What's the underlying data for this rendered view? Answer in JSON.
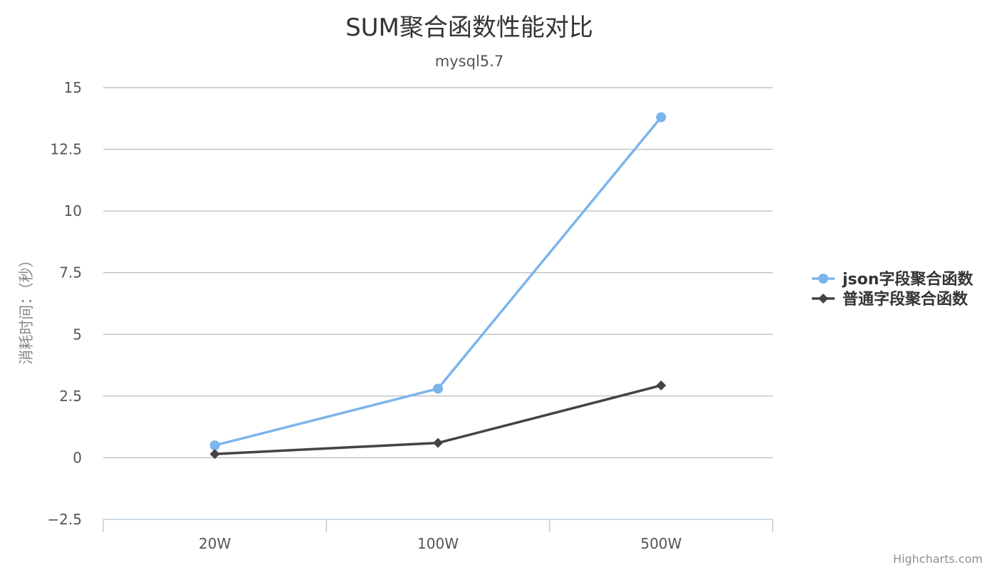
{
  "chart_data": {
    "type": "line",
    "title": "SUM聚合函数性能对比",
    "subtitle": "mysql5.7",
    "ylabel": "消耗时间：（秒）",
    "xlabel": "",
    "categories": [
      "20W",
      "100W",
      "500W"
    ],
    "ylim": [
      -2.5,
      15
    ],
    "yticks": [
      -2.5,
      0,
      2.5,
      5,
      7.5,
      10,
      12.5,
      15
    ],
    "ytick_labels": [
      "−2.5",
      "0",
      "2.5",
      "5",
      "7.5",
      "10",
      "12.5",
      "15"
    ],
    "grid": true,
    "legend_position": "right",
    "series": [
      {
        "name": "json字段聚合函数",
        "values": [
          0.5,
          2.8,
          13.8
        ],
        "color": "#7cb5ec",
        "marker": "circle"
      },
      {
        "name": "普通字段聚合函数",
        "values": [
          0.15,
          0.6,
          2.93
        ],
        "color": "#434348",
        "marker": "diamond"
      }
    ]
  },
  "credits": "Highcharts.com"
}
